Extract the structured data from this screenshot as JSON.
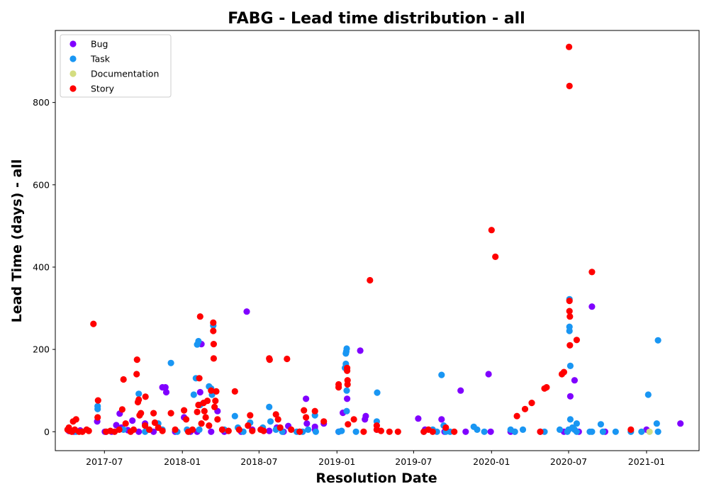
{
  "chart_data": {
    "type": "scatter",
    "title": "FABG - Lead time distribution - all",
    "xlabel": "Resolution Date",
    "ylabel": "Lead Time (days) - all",
    "xlim": [
      "2017-03-07",
      "2021-05-05"
    ],
    "ylim": [
      -46,
      975
    ],
    "x_ticks": [
      {
        "date": "2017-07-01",
        "label": "2017-07"
      },
      {
        "date": "2018-01-01",
        "label": "2018-01"
      },
      {
        "date": "2018-07-01",
        "label": "2018-07"
      },
      {
        "date": "2019-01-01",
        "label": "2019-01"
      },
      {
        "date": "2019-07-01",
        "label": "2019-07"
      },
      {
        "date": "2020-01-01",
        "label": "2020-01"
      },
      {
        "date": "2020-07-01",
        "label": "2020-07"
      },
      {
        "date": "2021-01-01",
        "label": "2021-01"
      }
    ],
    "y_ticks": [
      0,
      200,
      400,
      600,
      800
    ],
    "legend_position": "top-left",
    "series": [
      {
        "name": "Bug",
        "color": "#8000ff",
        "points": [
          [
            "2017-04-08",
            2
          ],
          [
            "2017-04-20",
            0
          ],
          [
            "2017-05-05",
            3
          ],
          [
            "2017-06-14",
            25
          ],
          [
            "2017-07-02",
            0
          ],
          [
            "2017-07-18",
            0
          ],
          [
            "2017-07-29",
            16
          ],
          [
            "2017-08-06",
            44
          ],
          [
            "2017-08-10",
            10
          ],
          [
            "2017-08-25",
            4
          ],
          [
            "2017-09-05",
            27
          ],
          [
            "2017-09-20",
            0
          ],
          [
            "2017-10-05",
            20
          ],
          [
            "2017-10-25",
            0
          ],
          [
            "2017-11-15",
            108
          ],
          [
            "2017-11-22",
            108
          ],
          [
            "2017-11-24",
            96
          ],
          [
            "2017-12-15",
            0
          ],
          [
            "2018-01-05",
            35
          ],
          [
            "2018-01-20",
            0
          ],
          [
            "2018-02-05",
            0
          ],
          [
            "2018-02-12",
            96
          ],
          [
            "2018-02-15",
            213
          ],
          [
            "2018-03-10",
            0
          ],
          [
            "2018-03-25",
            50
          ],
          [
            "2018-04-10",
            0
          ],
          [
            "2018-05-20",
            0
          ],
          [
            "2018-06-02",
            292
          ],
          [
            "2018-06-15",
            5
          ],
          [
            "2018-07-10",
            5
          ],
          [
            "2018-07-25",
            2
          ],
          [
            "2018-08-12",
            10
          ],
          [
            "2018-08-28",
            0
          ],
          [
            "2018-09-08",
            14
          ],
          [
            "2018-10-05",
            0
          ],
          [
            "2018-10-20",
            80
          ],
          [
            "2018-10-22",
            20
          ],
          [
            "2018-11-10",
            12
          ],
          [
            "2018-11-10",
            5
          ],
          [
            "2018-12-01",
            20
          ],
          [
            "2019-01-05",
            0
          ],
          [
            "2019-01-15",
            46
          ],
          [
            "2019-01-25",
            80
          ],
          [
            "2019-02-25",
            197
          ],
          [
            "2019-03-08",
            30
          ],
          [
            "2019-03-10",
            38
          ],
          [
            "2019-04-05",
            5
          ],
          [
            "2019-07-12",
            32
          ],
          [
            "2019-07-28",
            5
          ],
          [
            "2019-09-05",
            30
          ],
          [
            "2019-09-12",
            0
          ],
          [
            "2019-10-20",
            100
          ],
          [
            "2019-11-01",
            0
          ],
          [
            "2019-12-25",
            140
          ],
          [
            "2019-12-30",
            0
          ],
          [
            "2020-02-15",
            0
          ],
          [
            "2020-02-25",
            0
          ],
          [
            "2020-04-25",
            0
          ],
          [
            "2020-06-20",
            0
          ],
          [
            "2020-07-05",
            86
          ],
          [
            "2020-07-15",
            125
          ],
          [
            "2020-07-25",
            0
          ],
          [
            "2020-08-25",
            304
          ],
          [
            "2020-09-25",
            0
          ],
          [
            "2021-01-01",
            5
          ],
          [
            "2021-03-22",
            20
          ]
        ]
      },
      {
        "name": "Task",
        "color": "#1996f3",
        "points": [
          [
            "2017-04-10",
            2
          ],
          [
            "2017-04-25",
            0
          ],
          [
            "2017-06-15",
            55
          ],
          [
            "2017-06-15",
            62
          ],
          [
            "2017-07-05",
            0
          ],
          [
            "2017-08-15",
            5
          ],
          [
            "2017-09-20",
            92
          ],
          [
            "2017-10-05",
            0
          ],
          [
            "2017-10-15",
            5
          ],
          [
            "2017-11-05",
            20
          ],
          [
            "2017-11-15",
            5
          ],
          [
            "2017-12-05",
            167
          ],
          [
            "2017-12-20",
            0
          ],
          [
            "2018-01-12",
            5
          ],
          [
            "2018-01-28",
            90
          ],
          [
            "2018-02-02",
            130
          ],
          [
            "2018-02-05",
            212
          ],
          [
            "2018-02-08",
            220
          ],
          [
            "2018-02-10",
            5
          ],
          [
            "2018-02-12",
            65
          ],
          [
            "2018-03-05",
            110
          ],
          [
            "2018-03-10",
            105
          ],
          [
            "2018-03-12",
            90
          ],
          [
            "2018-03-15",
            258
          ],
          [
            "2018-04-10",
            5
          ],
          [
            "2018-05-05",
            38
          ],
          [
            "2018-05-12",
            10
          ],
          [
            "2018-05-25",
            0
          ],
          [
            "2018-06-10",
            22
          ],
          [
            "2018-07-10",
            10
          ],
          [
            "2018-07-25",
            60
          ],
          [
            "2018-07-28",
            25
          ],
          [
            "2018-08-10",
            5
          ],
          [
            "2018-08-25",
            0
          ],
          [
            "2018-09-28",
            0
          ],
          [
            "2018-10-12",
            0
          ],
          [
            "2018-10-25",
            5
          ],
          [
            "2018-11-10",
            40
          ],
          [
            "2018-11-12",
            0
          ],
          [
            "2019-01-05",
            0
          ],
          [
            "2019-01-12",
            2
          ],
          [
            "2019-01-20",
            155
          ],
          [
            "2019-01-22",
            165
          ],
          [
            "2019-01-22",
            190
          ],
          [
            "2019-01-23",
            195
          ],
          [
            "2019-01-24",
            202
          ],
          [
            "2019-01-24",
            100
          ],
          [
            "2019-01-24",
            50
          ],
          [
            "2019-02-15",
            0
          ],
          [
            "2019-04-05",
            25
          ],
          [
            "2019-04-06",
            95
          ],
          [
            "2019-07-25",
            0
          ],
          [
            "2019-08-15",
            5
          ],
          [
            "2019-08-25",
            0
          ],
          [
            "2019-09-05",
            138
          ],
          [
            "2019-09-10",
            15
          ],
          [
            "2019-09-15",
            0
          ],
          [
            "2019-09-25",
            0
          ],
          [
            "2019-11-20",
            12
          ],
          [
            "2019-11-28",
            5
          ],
          [
            "2019-12-15",
            0
          ],
          [
            "2020-02-15",
            5
          ],
          [
            "2020-02-25",
            0
          ],
          [
            "2020-03-15",
            5
          ],
          [
            "2020-05-05",
            0
          ],
          [
            "2020-06-10",
            5
          ],
          [
            "2020-06-28",
            0
          ],
          [
            "2020-07-01",
            5
          ],
          [
            "2020-07-03",
            255
          ],
          [
            "2020-07-03",
            245
          ],
          [
            "2020-07-03",
            322
          ],
          [
            "2020-07-05",
            160
          ],
          [
            "2020-07-05",
            30
          ],
          [
            "2020-07-10",
            10
          ],
          [
            "2020-07-15",
            5
          ],
          [
            "2020-07-20",
            20
          ],
          [
            "2020-07-20",
            0
          ],
          [
            "2020-08-20",
            0
          ],
          [
            "2020-08-25",
            0
          ],
          [
            "2020-09-15",
            18
          ],
          [
            "2020-09-20",
            0
          ],
          [
            "2020-10-20",
            0
          ],
          [
            "2020-11-25",
            0
          ],
          [
            "2020-12-20",
            0
          ],
          [
            "2021-01-05",
            90
          ],
          [
            "2021-01-25",
            20
          ],
          [
            "2021-01-28",
            0
          ],
          [
            "2021-01-28",
            222
          ]
        ]
      },
      {
        "name": "Documentation",
        "color": "#d4dd80",
        "points": [
          [
            "2021-01-08",
            0
          ]
        ]
      },
      {
        "name": "Story",
        "color": "#ff0000",
        "points": [
          [
            "2017-04-05",
            5
          ],
          [
            "2017-04-08",
            10
          ],
          [
            "2017-04-10",
            2
          ],
          [
            "2017-04-15",
            0
          ],
          [
            "2017-04-18",
            25
          ],
          [
            "2017-04-22",
            5
          ],
          [
            "2017-04-25",
            30
          ],
          [
            "2017-05-02",
            0
          ],
          [
            "2017-05-10",
            0
          ],
          [
            "2017-05-20",
            5
          ],
          [
            "2017-05-25",
            2
          ],
          [
            "2017-06-05",
            262
          ],
          [
            "2017-06-15",
            35
          ],
          [
            "2017-06-16",
            76
          ],
          [
            "2017-07-05",
            0
          ],
          [
            "2017-07-15",
            2
          ],
          [
            "2017-07-25",
            0
          ],
          [
            "2017-08-05",
            5
          ],
          [
            "2017-08-12",
            54
          ],
          [
            "2017-08-15",
            127
          ],
          [
            "2017-08-20",
            20
          ],
          [
            "2017-09-01",
            0
          ],
          [
            "2017-09-08",
            5
          ],
          [
            "2017-09-15",
            140
          ],
          [
            "2017-09-16",
            175
          ],
          [
            "2017-09-18",
            72
          ],
          [
            "2017-09-20",
            78
          ],
          [
            "2017-09-22",
            40
          ],
          [
            "2017-09-25",
            45
          ],
          [
            "2017-10-05",
            15
          ],
          [
            "2017-10-06",
            85
          ],
          [
            "2017-10-15",
            5
          ],
          [
            "2017-10-25",
            45
          ],
          [
            "2017-10-28",
            22
          ],
          [
            "2017-11-05",
            10
          ],
          [
            "2017-11-15",
            2
          ],
          [
            "2017-12-05",
            45
          ],
          [
            "2017-12-15",
            5
          ],
          [
            "2018-01-05",
            52
          ],
          [
            "2018-01-10",
            30
          ],
          [
            "2018-01-15",
            0
          ],
          [
            "2018-01-25",
            5
          ],
          [
            "2018-02-05",
            48
          ],
          [
            "2018-02-08",
            65
          ],
          [
            "2018-02-10",
            130
          ],
          [
            "2018-02-12",
            280
          ],
          [
            "2018-02-15",
            20
          ],
          [
            "2018-02-20",
            70
          ],
          [
            "2018-02-22",
            50
          ],
          [
            "2018-02-25",
            35
          ],
          [
            "2018-03-01",
            75
          ],
          [
            "2018-03-05",
            15
          ],
          [
            "2018-03-10",
            100
          ],
          [
            "2018-03-15",
            265
          ],
          [
            "2018-03-15",
            245
          ],
          [
            "2018-03-16",
            213
          ],
          [
            "2018-03-16",
            178
          ],
          [
            "2018-03-18",
            60
          ],
          [
            "2018-03-20",
            75
          ],
          [
            "2018-03-22",
            98
          ],
          [
            "2018-03-25",
            30
          ],
          [
            "2018-04-05",
            5
          ],
          [
            "2018-04-20",
            2
          ],
          [
            "2018-05-05",
            98
          ],
          [
            "2018-05-15",
            5
          ],
          [
            "2018-06-05",
            15
          ],
          [
            "2018-06-10",
            40
          ],
          [
            "2018-06-15",
            2
          ],
          [
            "2018-07-05",
            5
          ],
          [
            "2018-07-12",
            2
          ],
          [
            "2018-07-25",
            178
          ],
          [
            "2018-07-26",
            175
          ],
          [
            "2018-08-10",
            42
          ],
          [
            "2018-08-15",
            30
          ],
          [
            "2018-08-20",
            10
          ],
          [
            "2018-09-05",
            177
          ],
          [
            "2018-09-15",
            5
          ],
          [
            "2018-10-05",
            0
          ],
          [
            "2018-10-15",
            52
          ],
          [
            "2018-10-20",
            35
          ],
          [
            "2018-11-10",
            50
          ],
          [
            "2018-12-01",
            25
          ],
          [
            "2019-01-05",
            115
          ],
          [
            "2019-01-05",
            108
          ],
          [
            "2019-01-25",
            155
          ],
          [
            "2019-01-25",
            148
          ],
          [
            "2019-01-26",
            125
          ],
          [
            "2019-01-26",
            115
          ],
          [
            "2019-01-27",
            18
          ],
          [
            "2019-02-10",
            30
          ],
          [
            "2019-03-05",
            0
          ],
          [
            "2019-03-20",
            368
          ],
          [
            "2019-04-05",
            15
          ],
          [
            "2019-04-05",
            5
          ],
          [
            "2019-04-15",
            2
          ],
          [
            "2019-05-05",
            0
          ],
          [
            "2019-05-25",
            0
          ],
          [
            "2019-07-25",
            0
          ],
          [
            "2019-08-05",
            5
          ],
          [
            "2019-08-15",
            0
          ],
          [
            "2019-09-15",
            10
          ],
          [
            "2019-10-05",
            0
          ],
          [
            "2020-01-01",
            490
          ],
          [
            "2020-01-10",
            425
          ],
          [
            "2020-03-01",
            38
          ],
          [
            "2020-03-20",
            55
          ],
          [
            "2020-04-05",
            70
          ],
          [
            "2020-04-25",
            0
          ],
          [
            "2020-05-05",
            105
          ],
          [
            "2020-05-10",
            108
          ],
          [
            "2020-06-15",
            140
          ],
          [
            "2020-06-20",
            145
          ],
          [
            "2020-07-02",
            935
          ],
          [
            "2020-07-03",
            840
          ],
          [
            "2020-07-03",
            318
          ],
          [
            "2020-07-03",
            293
          ],
          [
            "2020-07-04",
            280
          ],
          [
            "2020-07-04",
            210
          ],
          [
            "2020-07-20",
            223
          ],
          [
            "2020-08-25",
            388
          ],
          [
            "2020-11-25",
            5
          ]
        ]
      }
    ]
  }
}
